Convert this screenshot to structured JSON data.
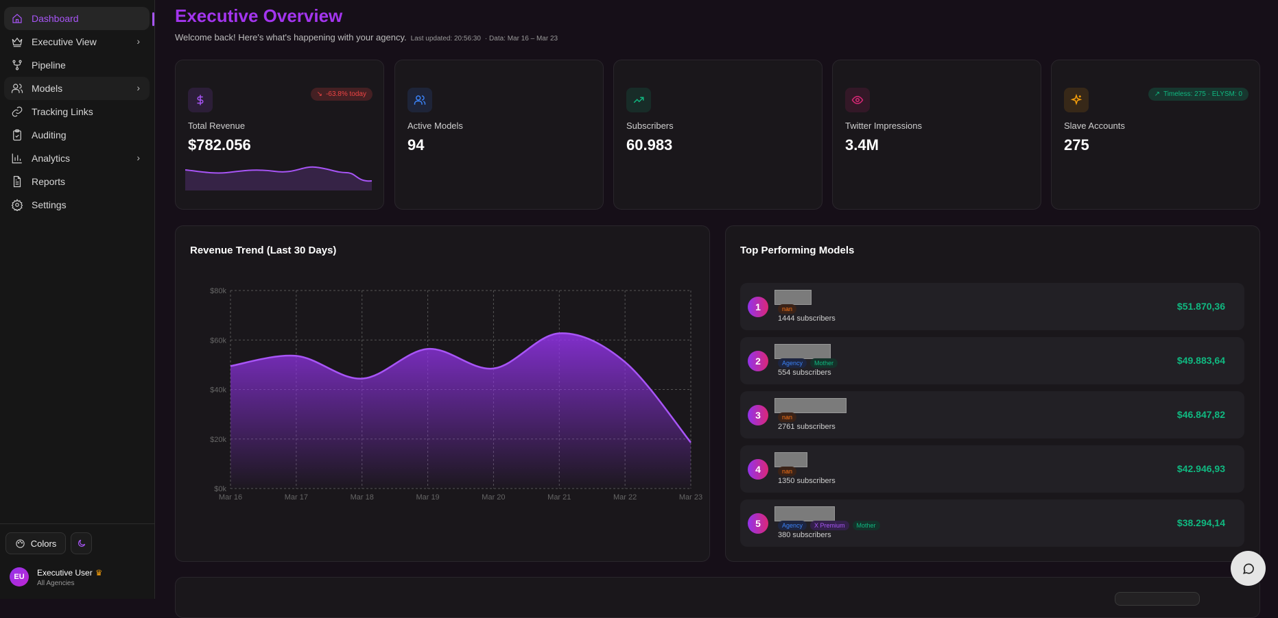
{
  "sidebar": {
    "items": [
      {
        "label": "Dashboard",
        "icon": "home-icon",
        "active": true
      },
      {
        "label": "Executive View",
        "icon": "crown-icon",
        "chevron": true
      },
      {
        "label": "Pipeline",
        "icon": "git-branch-icon"
      },
      {
        "label": "Models",
        "icon": "users-icon",
        "chevron": true
      },
      {
        "label": "Tracking Links",
        "icon": "link-icon"
      },
      {
        "label": "Auditing",
        "icon": "clipboard-check-icon"
      },
      {
        "label": "Analytics",
        "icon": "bar-chart-icon",
        "chevron": true
      },
      {
        "label": "Reports",
        "icon": "file-text-icon"
      },
      {
        "label": "Settings",
        "icon": "gear-icon"
      }
    ],
    "colors_label": "Colors",
    "user": {
      "initials": "EU",
      "name": "Executive User",
      "scope": "All Agencies"
    }
  },
  "header": {
    "title": "Executive Overview",
    "welcome": "Welcome back! Here's what's happening with your agency.",
    "last_updated": "Last updated: 20:56:30",
    "data_range": "· Data: Mar 16 – Mar 23"
  },
  "stats": [
    {
      "label": "Total Revenue",
      "value": "$782.056",
      "badge": "-63.8% today",
      "icon": "dollar-icon",
      "color": "#a855f7",
      "badge_color": "#ef4444"
    },
    {
      "label": "Active Models",
      "value": "94",
      "icon": "users-icon",
      "color": "#3b82f6"
    },
    {
      "label": "Subscribers",
      "value": "60.983",
      "icon": "trending-up-icon",
      "color": "#10b981"
    },
    {
      "label": "Twitter Impressions",
      "value": "3.4M",
      "icon": "eye-icon",
      "color": "#db2777"
    },
    {
      "label": "Slave Accounts",
      "value": "275",
      "badge": "Timeless: 275 · ELYSM: 0",
      "icon": "sparkles-icon",
      "color": "#f59e0b",
      "badge_color": "#10b981"
    }
  ],
  "revenue_chart": {
    "title": "Revenue Trend (Last 30 Days)"
  },
  "chart_data": {
    "type": "area",
    "categories": [
      "Mar 16",
      "Mar 17",
      "Mar 18",
      "Mar 19",
      "Mar 20",
      "Mar 21",
      "Mar 22",
      "Mar 23"
    ],
    "values": [
      49500,
      53600,
      44400,
      56400,
      48500,
      62700,
      51100,
      18600
    ],
    "ylim": [
      0,
      80000
    ],
    "yticks": [
      "$0k",
      "$20k",
      "$40k",
      "$60k",
      "$80k"
    ],
    "grid": true,
    "color": "#a855f7"
  },
  "top_models": {
    "title": "Top Performing Models",
    "items": [
      {
        "rank": "1",
        "tags": [
          "nan"
        ],
        "subscribers": "1444 subscribers",
        "revenue": "$51.870,36"
      },
      {
        "rank": "2",
        "tags": [
          "Agency",
          "Mother"
        ],
        "subscribers": "554 subscribers",
        "revenue": "$49.883,64"
      },
      {
        "rank": "3",
        "tags": [
          "nan"
        ],
        "subscribers": "2761 subscribers",
        "revenue": "$46.847,82"
      },
      {
        "rank": "4",
        "tags": [
          "nan"
        ],
        "subscribers": "1350 subscribers",
        "revenue": "$42.946,93"
      },
      {
        "rank": "5",
        "tags": [
          "Agency",
          "X Premium",
          "Mother"
        ],
        "subscribers": "380 subscribers",
        "revenue": "$38.294,14"
      }
    ]
  }
}
